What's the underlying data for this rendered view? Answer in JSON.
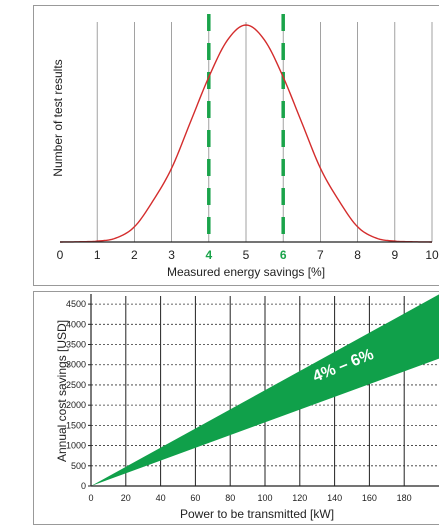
{
  "chart_data": [
    {
      "type": "line",
      "xlabel": "Measured energy savings [%]",
      "ylabel": "Number of test results",
      "xlim": [
        0,
        10
      ],
      "x_ticks": [
        "0",
        "1",
        "2",
        "3",
        "4",
        "5",
        "6",
        "7",
        "8",
        "9",
        "10"
      ],
      "highlighted_ticks": [
        "4",
        "6"
      ],
      "grid": "vertical",
      "series": [
        {
          "x": [
            0,
            0.5,
            1,
            1.5,
            2,
            2.5,
            3,
            3.5,
            4,
            4.5,
            5,
            5.5,
            6,
            6.5,
            7,
            7.5,
            8,
            8.5,
            9,
            9.5,
            10
          ],
          "y": [
            0.0,
            0.001,
            0.004,
            0.018,
            0.07,
            0.19,
            0.34,
            0.55,
            0.76,
            0.93,
            1.0,
            0.93,
            0.76,
            0.55,
            0.34,
            0.19,
            0.07,
            0.018,
            0.004,
            0.001,
            0.0
          ]
        }
      ],
      "markers": [
        {
          "x": 4,
          "style": "dashed",
          "color": "#1aa34a"
        },
        {
          "x": 6,
          "style": "dashed",
          "color": "#1aa34a"
        }
      ],
      "colors": {
        "curve": "#d42d2d",
        "marker": "#1aa34a"
      }
    },
    {
      "type": "area",
      "xlabel": "Power to be transmitted [kW]",
      "ylabel": "Annual cost savings [USD]",
      "xlim": [
        0,
        200
      ],
      "ylim": [
        0,
        4750
      ],
      "x_ticks": [
        "0",
        "20",
        "40",
        "60",
        "80",
        "100",
        "120",
        "140",
        "160",
        "180"
      ],
      "y_ticks": [
        "0",
        "500",
        "1000",
        "1500",
        "2000",
        "2500",
        "3000",
        "3500",
        "4000",
        "4500"
      ],
      "grid": "both",
      "band": {
        "label": "4% – 6%",
        "x": [
          0,
          200
        ],
        "lower": [
          0,
          3150
        ],
        "upper": [
          0,
          4740
        ],
        "color": "#10a04a"
      }
    }
  ]
}
